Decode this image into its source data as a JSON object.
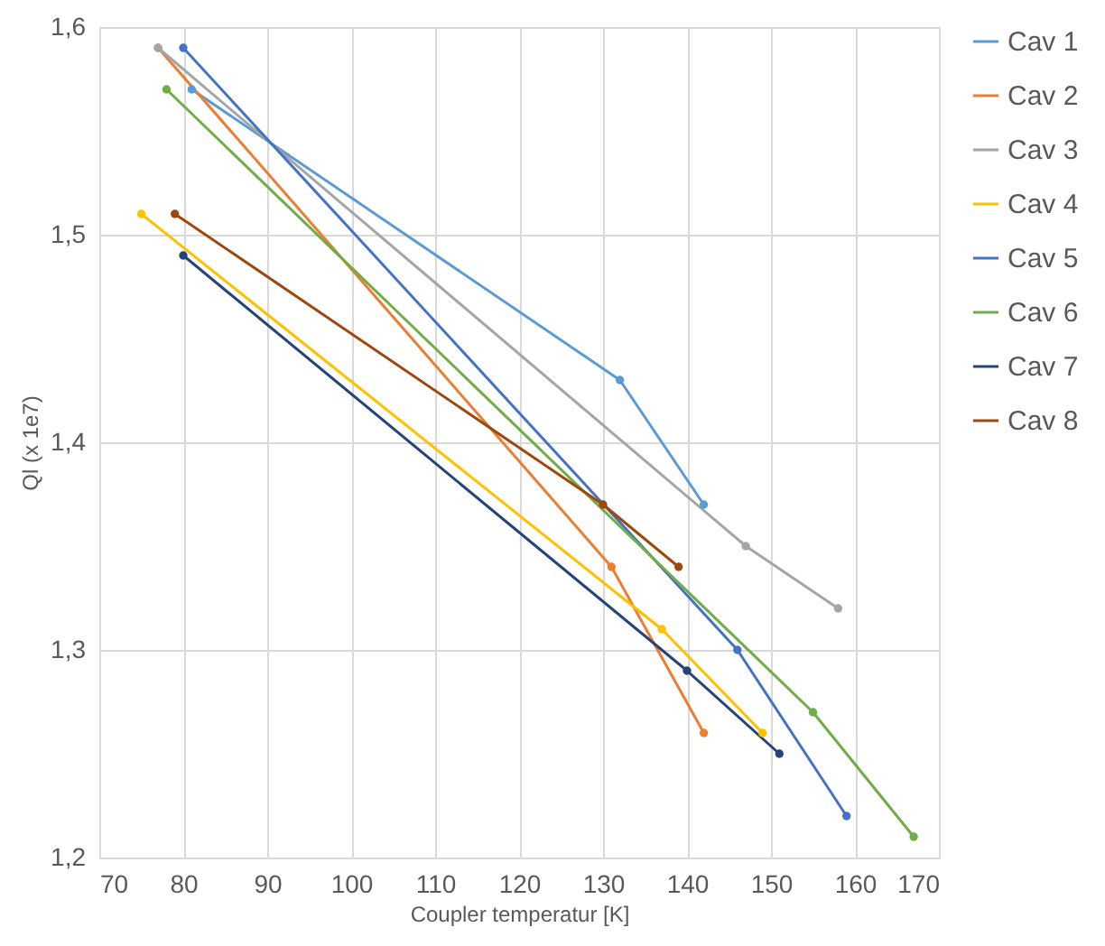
{
  "chart_data": {
    "type": "line",
    "xlabel": "Coupler temperatur [K]",
    "ylabel": "Ql (x 1e7)",
    "xlim": [
      70,
      170
    ],
    "xticks": [
      70,
      80,
      90,
      100,
      110,
      120,
      130,
      140,
      150,
      160,
      170
    ],
    "ylim": [
      1.2,
      1.6
    ],
    "yticks": [
      {
        "value": 1.2,
        "label": "1,2"
      },
      {
        "value": 1.3,
        "label": "1,3"
      },
      {
        "value": 1.4,
        "label": "1,4"
      },
      {
        "value": 1.5,
        "label": "1,5"
      },
      {
        "value": 1.6,
        "label": "1,6"
      }
    ],
    "grid": true,
    "legend": "right",
    "marker": "circle",
    "line_style": "solid",
    "series": [
      {
        "name": "Cav 1",
        "color": "#5b9bd5",
        "x": [
          81,
          132,
          142
        ],
        "values": [
          1.57,
          1.43,
          1.37
        ]
      },
      {
        "name": "Cav 2",
        "color": "#ed7d31",
        "x": [
          77,
          131,
          142
        ],
        "values": [
          1.59,
          1.34,
          1.26
        ]
      },
      {
        "name": "Cav 3",
        "color": "#a5a5a5",
        "x": [
          77,
          147,
          158
        ],
        "values": [
          1.59,
          1.35,
          1.32
        ]
      },
      {
        "name": "Cav 4",
        "color": "#ffc000",
        "x": [
          75,
          137,
          149
        ],
        "values": [
          1.51,
          1.31,
          1.26
        ]
      },
      {
        "name": "Cav 5",
        "color": "#4472c4",
        "x": [
          80,
          146,
          159
        ],
        "values": [
          1.59,
          1.3,
          1.22
        ]
      },
      {
        "name": "Cav 6",
        "color": "#70ad47",
        "x": [
          78,
          155,
          167
        ],
        "values": [
          1.57,
          1.27,
          1.21
        ]
      },
      {
        "name": "Cav 7",
        "color": "#264478",
        "x": [
          80,
          140,
          151
        ],
        "values": [
          1.49,
          1.29,
          1.25
        ]
      },
      {
        "name": "Cav 8",
        "color": "#9e480e",
        "x": [
          79,
          130,
          139
        ],
        "values": [
          1.51,
          1.37,
          1.34
        ]
      }
    ]
  }
}
